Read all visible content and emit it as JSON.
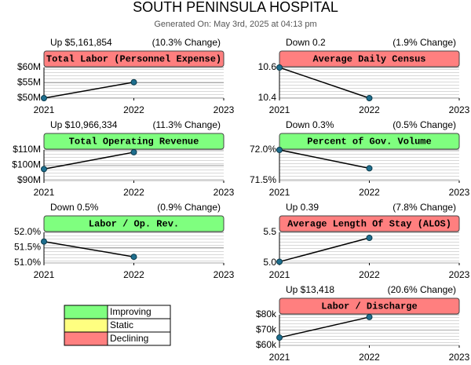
{
  "title": "SOUTH PENINSULA HOSPITAL",
  "subtitle": "Generated On: May 3rd, 2025 at 04:13 pm",
  "chart_data": [
    {
      "type": "line",
      "title": "Total Labor (Personnel Expense)",
      "change": "Up $5,161,854",
      "change_pct": "(10.3% Change)",
      "color": "#ff7f7f",
      "marker_color": "#1f6f8f",
      "x": [
        2021,
        2022
      ],
      "values": [
        50.0,
        55.2
      ],
      "xlim": [
        2021,
        2023
      ],
      "xticks": [
        2021,
        2022,
        2023
      ],
      "ylim": [
        50,
        60
      ],
      "yticks": [
        {
          "value": 50,
          "label": "$50M"
        },
        {
          "value": 55,
          "label": "$55M"
        },
        {
          "value": 60,
          "label": "$60M"
        }
      ]
    },
    {
      "type": "line",
      "title": "Average Daily Census",
      "change": "Down 0.2",
      "change_pct": "(1.9% Change)",
      "color": "#ff7f7f",
      "marker_color": "#1f6f8f",
      "x": [
        2021,
        2022
      ],
      "values": [
        10.6,
        10.4
      ],
      "xlim": [
        2021,
        2023
      ],
      "xticks": [
        2021,
        2022,
        2023
      ],
      "ylim": [
        10.4,
        10.6
      ],
      "yticks": [
        10.4,
        10.6
      ]
    },
    {
      "type": "line",
      "title": "Total Operating Revenue",
      "change": "Up $10,966,334",
      "change_pct": "(11.3% Change)",
      "color": "#7fff7f",
      "marker_color": "#1f6f8f",
      "x": [
        2021,
        2022
      ],
      "values": [
        97.5,
        108.5
      ],
      "xlim": [
        2021,
        2023
      ],
      "xticks": [
        2021,
        2022,
        2023
      ],
      "ylim": [
        90,
        110
      ],
      "yticks": [
        {
          "value": 90,
          "label": "$90M"
        },
        {
          "value": 100,
          "label": "$100M"
        },
        {
          "value": 110,
          "label": "$110M"
        }
      ]
    },
    {
      "type": "line",
      "title": "Percent of Gov. Volume",
      "change": "Down 0.3%",
      "change_pct": "(0.5% Change)",
      "color": "#7fff7f",
      "marker_color": "#1f6f8f",
      "x": [
        2021,
        2022
      ],
      "values": [
        72.0,
        71.7
      ],
      "xlim": [
        2021,
        2023
      ],
      "xticks": [
        2021,
        2022,
        2023
      ],
      "ylim": [
        71.5,
        72.0
      ],
      "yticks": [
        {
          "value": 71.5,
          "label": "71.5%"
        },
        {
          "value": 72.0,
          "label": "72.0%"
        }
      ]
    },
    {
      "type": "line",
      "title": "Labor / Op. Rev.",
      "change": "Down 0.5%",
      "change_pct": "(0.9% Change)",
      "color": "#7fff7f",
      "marker_color": "#1f6f8f",
      "x": [
        2021,
        2022
      ],
      "values": [
        51.7,
        51.2
      ],
      "xlim": [
        2021,
        2023
      ],
      "xticks": [
        2021,
        2022,
        2023
      ],
      "ylim": [
        51.0,
        52.0
      ],
      "yticks": [
        {
          "value": 51.0,
          "label": "51.0%"
        },
        {
          "value": 51.5,
          "label": "51.5%"
        },
        {
          "value": 52.0,
          "label": "52.0%"
        }
      ]
    },
    {
      "type": "line",
      "title": "Average Length Of Stay (ALOS)",
      "change": "Up 0.39",
      "change_pct": "(7.8% Change)",
      "color": "#ff7f7f",
      "marker_color": "#1f6f8f",
      "x": [
        2021,
        2022
      ],
      "values": [
        5.02,
        5.41
      ],
      "xlim": [
        2021,
        2023
      ],
      "xticks": [
        2021,
        2022,
        2023
      ],
      "ylim": [
        5.0,
        5.5
      ],
      "yticks": [
        {
          "value": 5.0,
          "label": "5.0"
        },
        5.5
      ]
    },
    {
      "type": "line",
      "title": "Labor / Discharge",
      "change": "Up $13,418",
      "change_pct": "(20.6% Change)",
      "color": "#ff7f7f",
      "marker_color": "#1f6f8f",
      "x": [
        2021,
        2022
      ],
      "values": [
        65.1,
        78.5
      ],
      "xlim": [
        2021,
        2023
      ],
      "xticks": [
        2021,
        2022,
        2023
      ],
      "ylim": [
        60,
        80
      ],
      "yticks": [
        {
          "value": 60,
          "label": "$60k"
        },
        {
          "value": 70,
          "label": "$70k"
        },
        {
          "value": 80,
          "label": "$80k"
        }
      ]
    }
  ],
  "legend": [
    {
      "label": "Improving",
      "color": "#80ff80"
    },
    {
      "label": "Static",
      "color": "#ffff80"
    },
    {
      "label": "Declining",
      "color": "#ff8080"
    }
  ]
}
